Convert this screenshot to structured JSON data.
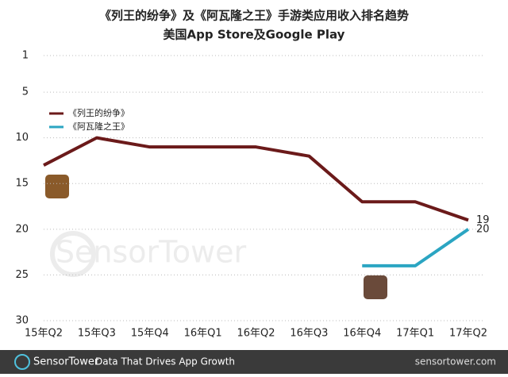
{
  "chart_data": {
    "type": "line",
    "title": "《列王的纷争》及《阿瓦隆之王》手游类应用收入排名趋势",
    "subtitle": "美国App Store及Google Play",
    "categories": [
      "15年Q2",
      "15年Q3",
      "15年Q4",
      "16年Q1",
      "16年Q2",
      "16年Q3",
      "16年Q4",
      "17年Q1",
      "17年Q2"
    ],
    "series": [
      {
        "name": "《列王的纷争》",
        "color": "#6b1a1a",
        "values": [
          13,
          10,
          11,
          11,
          11,
          12,
          17,
          17,
          19
        ]
      },
      {
        "name": "《阿瓦隆之王》",
        "color": "#2ba5c2",
        "values": [
          null,
          null,
          null,
          null,
          null,
          null,
          24,
          24,
          20
        ]
      }
    ],
    "ylim": [
      1,
      30
    ],
    "yticks": [
      1,
      5,
      10,
      15,
      20,
      25,
      30
    ],
    "y_reversed": true,
    "grid": true,
    "legend": "upper-left",
    "watermark": "SensorTower",
    "footer": {
      "brand": "SensorTower",
      "tagline": "Data That Drives App Growth",
      "site": "sensortower.com"
    }
  }
}
